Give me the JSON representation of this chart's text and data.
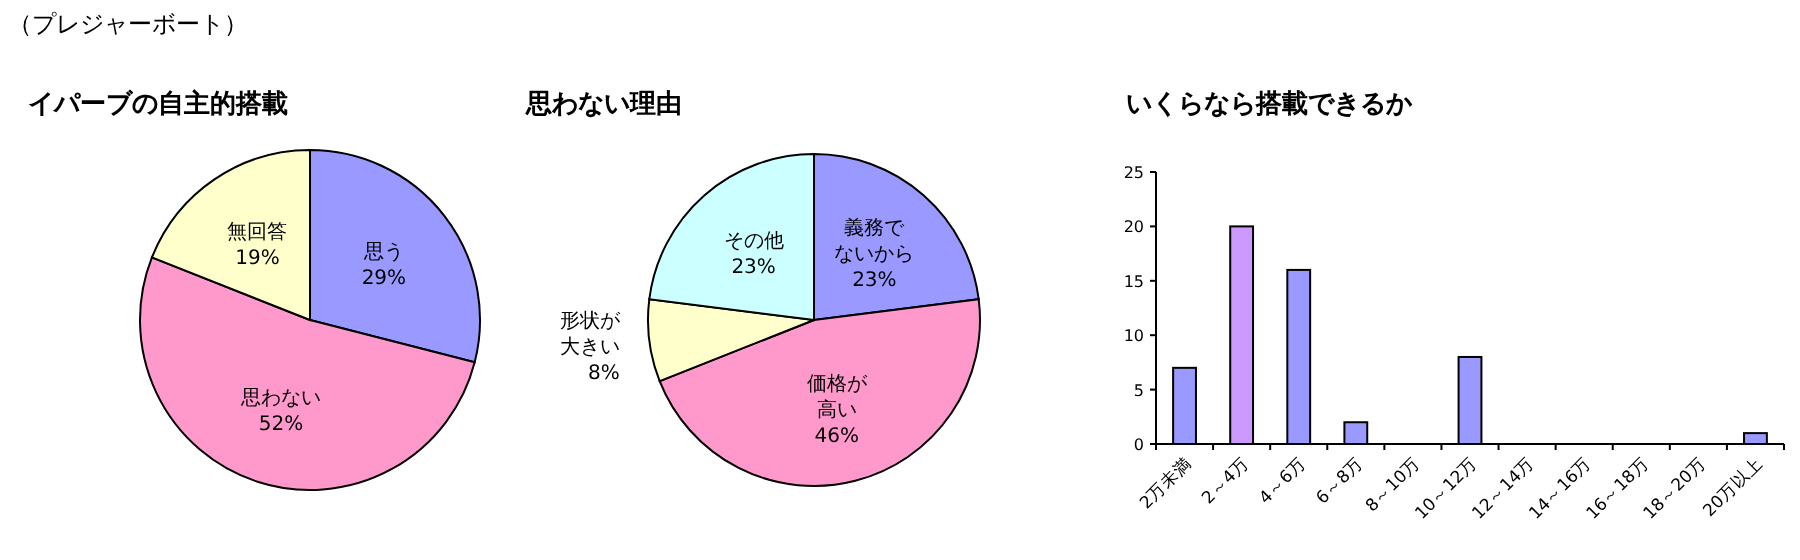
{
  "chart_data": [
    {
      "type": "pie",
      "title": "イパーブの自主的搭載",
      "annotations": [
        "（プレジャーボート）"
      ],
      "categories": [
        "思う",
        "思わない",
        "無回答"
      ],
      "values": [
        29,
        52,
        19
      ],
      "value_labels": [
        "29%",
        "52%",
        "19%"
      ],
      "colors": [
        "#9999ff",
        "#ff99cc",
        "#ffffcc"
      ]
    },
    {
      "type": "pie",
      "title": "思わない理由",
      "categories": [
        "義務でないから",
        "価格が高い",
        "形状が大きい",
        "その他"
      ],
      "values": [
        23,
        46,
        8,
        23
      ],
      "value_labels": [
        "23%",
        "46%",
        "8%",
        "23%"
      ],
      "colors": [
        "#9999ff",
        "#ff99cc",
        "#ffffcc",
        "#ccffff"
      ]
    },
    {
      "type": "bar",
      "title": "いくらなら搭載できるか",
      "categories": [
        "2万未満",
        "2～4万",
        "4～6万",
        "6～8万",
        "8～10万",
        "10～12万",
        "12～14万",
        "14～16万",
        "16～18万",
        "18～20万",
        "20万以上"
      ],
      "values": [
        7,
        20,
        16,
        2,
        0,
        8,
        0,
        0,
        0,
        0,
        1
      ],
      "colors": [
        "#9999ff",
        "#cc99ff",
        "#9999ff",
        "#9999ff",
        "#9999ff",
        "#9999ff",
        "#9999ff",
        "#9999ff",
        "#9999ff",
        "#9999ff",
        "#9999ff"
      ],
      "ylim": [
        0,
        25
      ],
      "yticks": [
        0,
        5,
        10,
        15,
        20,
        25
      ]
    }
  ]
}
